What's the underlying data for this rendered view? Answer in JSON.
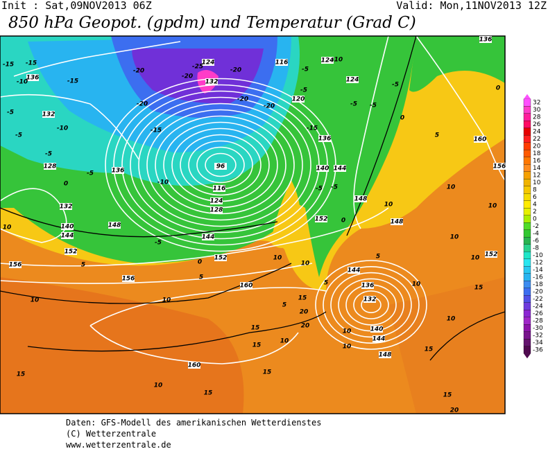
{
  "header": {
    "init": "Init : Sat,09NOV2013 06Z",
    "valid": "Valid: Mon,11NOV2013 12Z",
    "title": "850 hPa Geopot. (gpdm) und Temperatur (Grad C)"
  },
  "map": {
    "geopotential_labels": [
      136,
      132,
      128,
      132,
      140,
      144,
      152,
      156,
      136,
      148,
      156,
      160,
      160,
      152,
      124,
      132,
      96,
      116,
      124,
      128,
      144,
      140,
      144,
      148,
      152,
      136,
      144,
      136,
      132,
      140,
      144,
      148,
      148,
      152,
      160,
      156,
      136,
      124,
      116,
      120,
      124
    ],
    "temperature_labels": [
      -15,
      -15,
      -10,
      -15,
      -5,
      -5,
      -10,
      -5,
      0,
      10,
      -5,
      -20,
      -20,
      -15,
      -20,
      -25,
      -20,
      -20,
      -20,
      -5,
      -5,
      -10,
      -5,
      -5,
      -5,
      0,
      5,
      -15,
      -5,
      -5,
      0,
      -10,
      -5,
      5,
      0,
      5,
      10,
      10,
      15,
      15,
      20,
      20,
      15,
      5,
      5,
      10,
      10,
      10,
      10,
      10,
      10,
      10,
      5,
      10,
      10,
      15,
      15,
      20,
      15,
      15,
      10,
      15,
      10,
      10,
      0,
      15,
      10
    ]
  },
  "colorbar": {
    "levels": [
      32,
      30,
      28,
      26,
      24,
      22,
      20,
      18,
      16,
      14,
      12,
      10,
      8,
      6,
      4,
      2,
      0,
      -2,
      -4,
      -6,
      -8,
      -10,
      -12,
      -14,
      -16,
      -18,
      -20,
      -22,
      -24,
      -26,
      -28,
      -30,
      -32,
      -34,
      -36
    ],
    "colors": [
      "#ff50ff",
      "#ff3cc8",
      "#ff1e9c",
      "#ff0a64",
      "#e60000",
      "#ff1e1e",
      "#ff3c00",
      "#ff5a00",
      "#ff7800",
      "#ff8c1e",
      "#f5a000",
      "#f0b400",
      "#f5c800",
      "#f5dc00",
      "#ffeb00",
      "#e6f000",
      "#aaee00",
      "#50dc28",
      "#32c832",
      "#28b450",
      "#28d28c",
      "#1ee6c8",
      "#28e6f0",
      "#28c8f0",
      "#28b4f0",
      "#3c8cf0",
      "#3c6ef0",
      "#5050e6",
      "#6e3cdc",
      "#8c28d2",
      "#a028c8",
      "#8c14aa",
      "#78148c",
      "#64146e",
      "#500a50"
    ]
  },
  "footer": [
    "Daten: GFS-Modell des amerikanischen Wetterdienstes",
    "(C) Wetterzentrale",
    "www.wetterzentrale.de"
  ]
}
